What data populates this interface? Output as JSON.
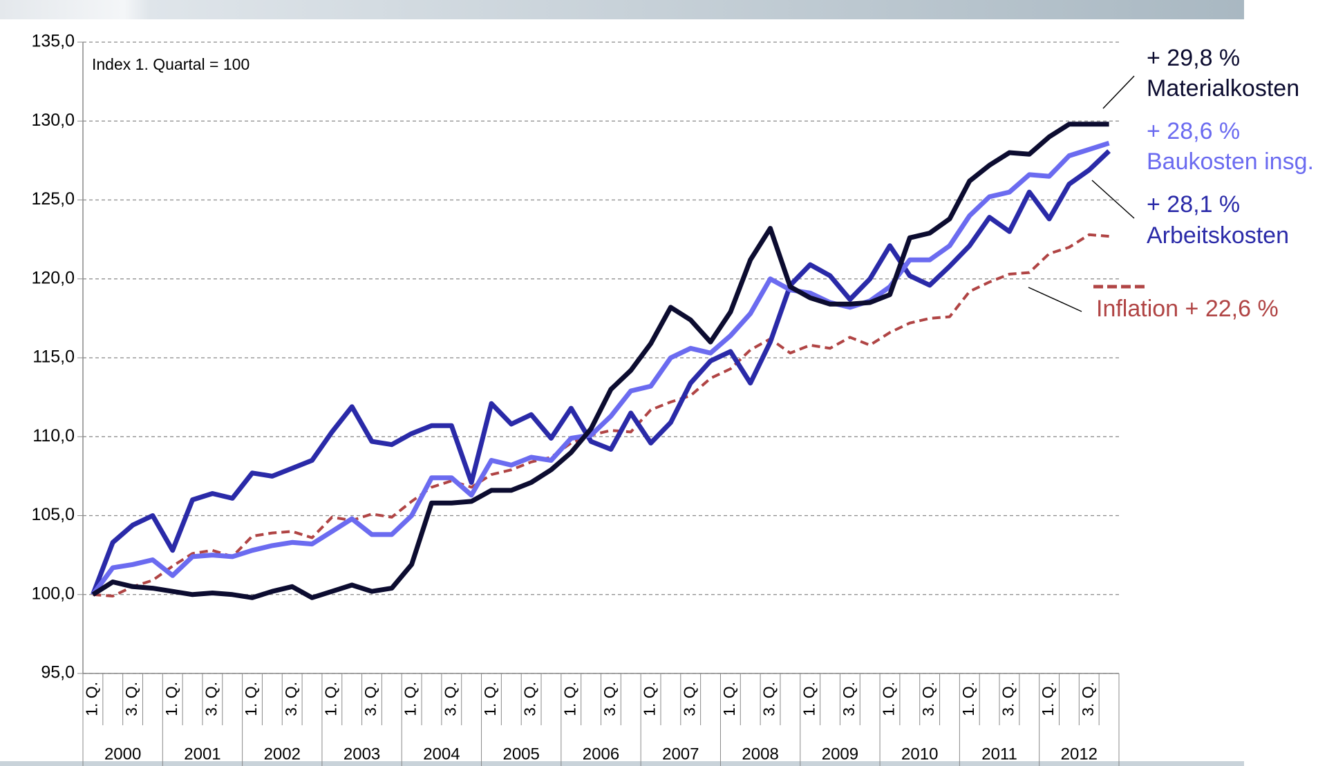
{
  "chart_data": {
    "type": "line",
    "annotation": "Index 1. Quartal = 100",
    "categories": [
      "1. Q.",
      null,
      "3. Q.",
      null,
      "1. Q.",
      null,
      "3. Q.",
      null,
      "1. Q.",
      null,
      "3. Q.",
      null,
      "1. Q.",
      null,
      "3. Q.",
      null,
      "1. Q.",
      null,
      "3. Q.",
      null,
      "1. Q.",
      null,
      "3. Q.",
      null,
      "1. Q.",
      null,
      "3. Q.",
      null,
      "1. Q.",
      null,
      "3. Q.",
      null,
      "1. Q.",
      null,
      "3. Q.",
      null,
      "1. Q.",
      null,
      "3. Q.",
      null,
      "1. Q.",
      null,
      "3. Q.",
      null,
      "1. Q.",
      null,
      "3. Q.",
      null,
      "1. Q.",
      null,
      "3. Q.",
      null
    ],
    "years": [
      "2000",
      "2001",
      "2002",
      "2003",
      "2004",
      "2005",
      "2006",
      "2007",
      "2008",
      "2009",
      "2010",
      "2011",
      "2012"
    ],
    "ylim": [
      95,
      135
    ],
    "yticks": [
      {
        "value": 95,
        "label": "95,0"
      },
      {
        "value": 100,
        "label": "100,0"
      },
      {
        "value": 105,
        "label": "105,0"
      },
      {
        "value": 110,
        "label": "110,0"
      },
      {
        "value": 115,
        "label": "115,0"
      },
      {
        "value": 120,
        "label": "120,0"
      },
      {
        "value": 125,
        "label": "125,0"
      },
      {
        "value": 130,
        "label": "130,0"
      },
      {
        "value": 135,
        "label": "135,0"
      }
    ],
    "grid": true,
    "series": [
      {
        "name": "Inflation",
        "color": "#b04444",
        "dashed": true,
        "values": [
          100.0,
          99.9,
          100.5,
          100.9,
          101.8,
          102.6,
          102.8,
          102.4,
          103.7,
          103.9,
          104.0,
          103.6,
          104.9,
          104.7,
          105.1,
          104.9,
          105.9,
          106.8,
          107.2,
          106.8,
          107.6,
          107.9,
          108.4,
          108.7,
          109.6,
          110.1,
          110.4,
          110.3,
          111.7,
          112.2,
          112.6,
          113.7,
          114.3,
          115.5,
          116.2,
          115.3,
          115.8,
          115.6,
          116.3,
          115.8,
          116.6,
          117.2,
          117.5,
          117.6,
          119.2,
          119.8,
          120.3,
          120.4,
          121.6,
          122.0,
          122.8,
          122.7
        ]
      },
      {
        "name": "Arbeitskosten",
        "color": "#2a2aa8",
        "dashed": false,
        "values": [
          100.0,
          103.3,
          104.4,
          105.0,
          102.8,
          106.0,
          106.4,
          106.1,
          107.7,
          107.5,
          108.0,
          108.5,
          110.3,
          111.9,
          109.7,
          109.5,
          110.2,
          110.7,
          110.7,
          107.1,
          112.1,
          110.8,
          111.4,
          109.9,
          111.8,
          109.7,
          109.2,
          111.5,
          109.6,
          110.9,
          113.4,
          114.8,
          115.4,
          113.4,
          116.0,
          119.6,
          120.9,
          120.2,
          118.7,
          120.0,
          122.1,
          120.2,
          119.6,
          120.8,
          122.1,
          123.9,
          123.0,
          125.5,
          123.8,
          126.0,
          126.9,
          128.1
        ]
      },
      {
        "name": "Baukosten insg.",
        "color": "#6b6bf0",
        "dashed": false,
        "values": [
          100.0,
          101.7,
          101.9,
          102.2,
          101.2,
          102.4,
          102.5,
          102.4,
          102.8,
          103.1,
          103.3,
          103.2,
          104.0,
          104.8,
          103.8,
          103.8,
          105.0,
          107.4,
          107.4,
          106.3,
          108.5,
          108.2,
          108.7,
          108.5,
          109.9,
          110.1,
          111.3,
          112.9,
          113.2,
          115.0,
          115.6,
          115.3,
          116.4,
          117.8,
          120.0,
          119.3,
          119.1,
          118.5,
          118.2,
          118.6,
          119.5,
          121.2,
          121.2,
          122.1,
          124.0,
          125.2,
          125.5,
          126.6,
          126.5,
          127.8,
          128.2,
          128.6
        ]
      },
      {
        "name": "Materialkosten",
        "color": "#0c0c30",
        "dashed": false,
        "values": [
          100.0,
          100.8,
          100.5,
          100.4,
          100.2,
          100.0,
          100.1,
          100.0,
          99.8,
          100.2,
          100.5,
          99.8,
          100.2,
          100.6,
          100.2,
          100.4,
          101.9,
          105.8,
          105.8,
          105.9,
          106.6,
          106.6,
          107.1,
          107.9,
          109.0,
          110.5,
          113.0,
          114.2,
          115.9,
          118.2,
          117.4,
          116.0,
          117.9,
          121.2,
          123.2,
          119.5,
          118.8,
          118.4,
          118.4,
          118.5,
          119.0,
          122.6,
          122.9,
          123.8,
          126.2,
          127.2,
          128.0,
          127.9,
          129.0,
          129.8,
          129.8,
          129.8
        ]
      }
    ],
    "labels": [
      {
        "change": "+ 29,8 %",
        "series": 3
      },
      {
        "change": "+ 28,6 %",
        "series": 2
      },
      {
        "change": "+ 28,1 %",
        "series": 1
      },
      {
        "change": "+ 22,6 %",
        "series": 0
      }
    ]
  }
}
